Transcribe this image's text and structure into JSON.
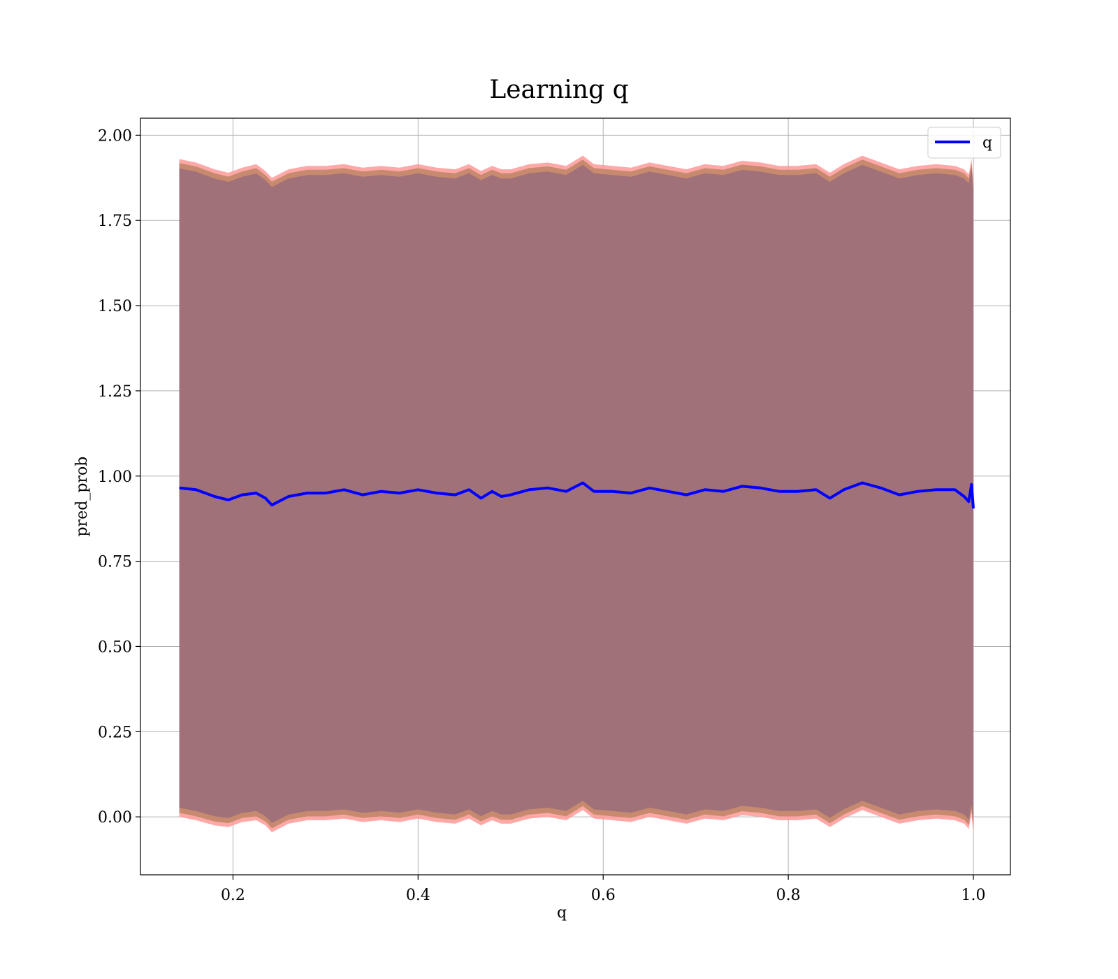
{
  "chart_data": {
    "type": "line",
    "title": "Learning q",
    "xlabel": "q",
    "ylabel": "pred_prob",
    "xlim": [
      0.1,
      1.04
    ],
    "ylim": [
      -0.17,
      2.05
    ],
    "x_ticks": [
      0.2,
      0.4,
      0.6,
      0.8,
      1.0
    ],
    "x_tick_labels": [
      "0.2",
      "0.4",
      "0.6",
      "0.8",
      "1.0"
    ],
    "y_ticks": [
      0.0,
      0.25,
      0.5,
      0.75,
      1.0,
      1.25,
      1.5,
      1.75,
      2.0
    ],
    "y_tick_labels": [
      "0.00",
      "0.25",
      "0.50",
      "0.75",
      "1.00",
      "1.25",
      "1.50",
      "1.75",
      "2.00"
    ],
    "grid": true,
    "legend": {
      "placement": "top-right",
      "entries": [
        {
          "label": "q",
          "color": "#0000ff"
        }
      ]
    },
    "colors": {
      "line": "#0000ff",
      "band_outer": "#ff9999",
      "band_middle": "#c88a6e",
      "band_inner": "#a1717a",
      "grid": "#b0b0b0"
    },
    "series": [
      {
        "name": "q",
        "x": [
          0.142,
          0.16,
          0.18,
          0.195,
          0.21,
          0.225,
          0.235,
          0.242,
          0.26,
          0.28,
          0.3,
          0.32,
          0.34,
          0.36,
          0.38,
          0.4,
          0.42,
          0.44,
          0.455,
          0.468,
          0.48,
          0.49,
          0.5,
          0.52,
          0.54,
          0.56,
          0.578,
          0.59,
          0.61,
          0.63,
          0.65,
          0.67,
          0.69,
          0.71,
          0.73,
          0.75,
          0.77,
          0.79,
          0.81,
          0.83,
          0.845,
          0.86,
          0.88,
          0.9,
          0.92,
          0.94,
          0.96,
          0.98,
          0.99,
          0.995,
          0.998,
          1.0
        ],
        "y": [
          0.965,
          0.96,
          0.94,
          0.93,
          0.945,
          0.95,
          0.935,
          0.915,
          0.94,
          0.95,
          0.95,
          0.96,
          0.945,
          0.955,
          0.95,
          0.96,
          0.95,
          0.945,
          0.96,
          0.935,
          0.955,
          0.94,
          0.945,
          0.96,
          0.965,
          0.955,
          0.98,
          0.955,
          0.955,
          0.95,
          0.965,
          0.955,
          0.945,
          0.96,
          0.955,
          0.97,
          0.965,
          0.955,
          0.955,
          0.96,
          0.935,
          0.96,
          0.98,
          0.965,
          0.945,
          0.955,
          0.96,
          0.96,
          0.94,
          0.925,
          0.975,
          0.905
        ],
        "band_upper": [
          1.93,
          1.92,
          1.9,
          1.89,
          1.905,
          1.915,
          1.895,
          1.875,
          1.9,
          1.91,
          1.91,
          1.915,
          1.905,
          1.91,
          1.905,
          1.915,
          1.905,
          1.9,
          1.915,
          1.895,
          1.91,
          1.9,
          1.9,
          1.915,
          1.92,
          1.91,
          1.94,
          1.915,
          1.91,
          1.905,
          1.92,
          1.91,
          1.9,
          1.915,
          1.91,
          1.925,
          1.92,
          1.91,
          1.91,
          1.915,
          1.89,
          1.915,
          1.94,
          1.92,
          1.9,
          1.91,
          1.915,
          1.91,
          1.9,
          1.885,
          1.93,
          1.86
        ],
        "band_lower": [
          0.0,
          -0.01,
          -0.025,
          -0.03,
          -0.015,
          -0.01,
          -0.025,
          -0.045,
          -0.02,
          -0.01,
          -0.01,
          -0.005,
          -0.015,
          -0.01,
          -0.015,
          -0.005,
          -0.015,
          -0.02,
          -0.005,
          -0.025,
          -0.01,
          -0.02,
          -0.02,
          -0.005,
          0.0,
          -0.01,
          0.02,
          -0.005,
          -0.01,
          -0.015,
          0.0,
          -0.01,
          -0.02,
          -0.005,
          -0.01,
          0.005,
          0.0,
          -0.01,
          -0.01,
          -0.005,
          -0.03,
          -0.005,
          0.02,
          0.0,
          -0.02,
          -0.01,
          -0.005,
          -0.01,
          -0.02,
          -0.035,
          0.01,
          -0.05
        ]
      }
    ]
  }
}
